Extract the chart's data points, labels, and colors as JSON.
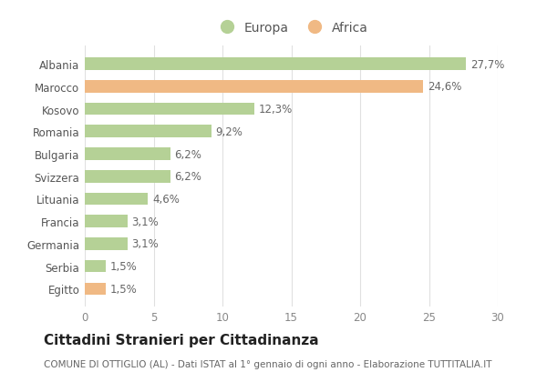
{
  "categories": [
    "Albania",
    "Marocco",
    "Kosovo",
    "Romania",
    "Bulgaria",
    "Svizzera",
    "Lituania",
    "Francia",
    "Germania",
    "Serbia",
    "Egitto"
  ],
  "values": [
    27.7,
    24.6,
    12.3,
    9.2,
    6.2,
    6.2,
    4.6,
    3.1,
    3.1,
    1.5,
    1.5
  ],
  "labels": [
    "27,7%",
    "24,6%",
    "12,3%",
    "9,2%",
    "6,2%",
    "6,2%",
    "4,6%",
    "3,1%",
    "3,1%",
    "1,5%",
    "1,5%"
  ],
  "colors": [
    "#b5d196",
    "#f0b984",
    "#b5d196",
    "#b5d196",
    "#b5d196",
    "#b5d196",
    "#b5d196",
    "#b5d196",
    "#b5d196",
    "#b5d196",
    "#f0b984"
  ],
  "europa_color": "#b5d196",
  "africa_color": "#f0b984",
  "xlim": [
    0,
    30
  ],
  "xticks": [
    0,
    5,
    10,
    15,
    20,
    25,
    30
  ],
  "title": "Cittadini Stranieri per Cittadinanza",
  "subtitle": "COMUNE DI OTTIGLIO (AL) - Dati ISTAT al 1° gennaio di ogni anno - Elaborazione TUTTITALIA.IT",
  "background_color": "#ffffff",
  "grid_color": "#e0e0e0",
  "bar_height": 0.55,
  "title_fontsize": 11,
  "subtitle_fontsize": 7.5,
  "label_fontsize": 8.5,
  "tick_fontsize": 8.5,
  "legend_fontsize": 10
}
